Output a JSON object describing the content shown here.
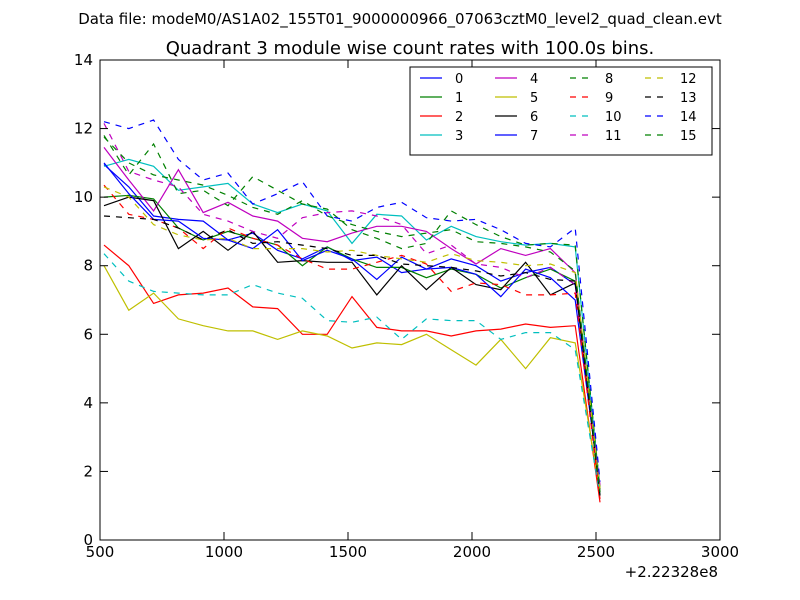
{
  "header": {
    "data_file": "Data file: modeM0/AS1A02_155T01_9000000966_07063cztM0_level2_quad_clean.evt"
  },
  "chart_data": {
    "type": "line",
    "title": "Quadrant 3 module wise count rates with 100.0s bins.",
    "xlabel": "",
    "ylabel": "",
    "x_offset_label": "+2.22328e8",
    "xlim": [
      500,
      3000
    ],
    "ylim": [
      0,
      14
    ],
    "xticks": [
      500,
      1000,
      1500,
      2000,
      2500,
      3000
    ],
    "yticks": [
      0,
      2,
      4,
      6,
      8,
      10,
      12,
      14
    ],
    "xtick_labels": [
      "500",
      "1000",
      "1500",
      "2000",
      "2500",
      "3000"
    ],
    "ytick_labels": [
      "0",
      "2",
      "4",
      "6",
      "8",
      "10",
      "12",
      "14"
    ],
    "grid": false,
    "legend_position": "top-right",
    "legend_columns": 4,
    "x": [
      516,
      616,
      716,
      816,
      916,
      1016,
      1116,
      1216,
      1316,
      1416,
      1516,
      1616,
      1716,
      1816,
      1916,
      2016,
      2116,
      2216,
      2316,
      2416,
      2516
    ],
    "series": [
      {
        "name": "0",
        "color": "#0000ff",
        "dash": "solid",
        "values": [
          10.95,
          10.3,
          9.45,
          9.35,
          9.3,
          8.75,
          8.95,
          8.45,
          8.2,
          8.55,
          8.15,
          8.25,
          7.8,
          7.9,
          8.2,
          8.0,
          7.55,
          7.8,
          7.95,
          7.45,
          1.4
        ]
      },
      {
        "name": "1",
        "color": "#008000",
        "dash": "solid",
        "values": [
          10.0,
          10.05,
          9.95,
          9.1,
          8.75,
          9.0,
          8.8,
          8.6,
          8.0,
          8.55,
          8.2,
          7.95,
          7.95,
          7.65,
          7.9,
          7.75,
          7.35,
          7.65,
          7.9,
          7.55,
          1.3
        ]
      },
      {
        "name": "2",
        "color": "#ff0000",
        "dash": "solid",
        "values": [
          8.6,
          8.0,
          6.9,
          7.15,
          7.2,
          7.35,
          6.8,
          6.75,
          6.0,
          6.0,
          7.1,
          6.2,
          6.1,
          6.1,
          5.95,
          6.1,
          6.15,
          6.3,
          6.2,
          6.25,
          1.1
        ]
      },
      {
        "name": "3",
        "color": "#00bfbf",
        "dash": "solid",
        "values": [
          10.9,
          11.1,
          10.9,
          10.2,
          10.3,
          10.4,
          9.8,
          9.55,
          9.8,
          9.6,
          8.65,
          9.5,
          9.45,
          8.75,
          9.15,
          8.85,
          8.7,
          8.6,
          8.65,
          8.55,
          1.5
        ]
      },
      {
        "name": "4",
        "color": "#bf00bf",
        "dash": "solid",
        "values": [
          11.45,
          10.5,
          9.6,
          10.8,
          9.55,
          9.85,
          9.45,
          9.3,
          8.8,
          8.7,
          8.95,
          9.15,
          9.15,
          9.0,
          8.5,
          8.05,
          8.5,
          8.3,
          8.5,
          7.8,
          1.5
        ]
      },
      {
        "name": "5",
        "color": "#bfbf00",
        "dash": "solid",
        "values": [
          8.0,
          6.7,
          7.2,
          6.45,
          6.25,
          6.1,
          6.1,
          5.85,
          6.1,
          5.95,
          5.6,
          5.75,
          5.7,
          6.0,
          5.55,
          5.1,
          5.85,
          5.0,
          5.9,
          5.75,
          1.4
        ]
      },
      {
        "name": "6",
        "color": "#000000",
        "dash": "solid",
        "values": [
          9.75,
          10.0,
          9.9,
          8.5,
          9.0,
          8.45,
          9.0,
          8.1,
          8.15,
          8.1,
          8.1,
          7.15,
          8.0,
          7.3,
          7.95,
          7.45,
          7.3,
          8.1,
          7.15,
          7.5,
          1.5
        ]
      },
      {
        "name": "7",
        "color": "#0000ff",
        "dash": "solid",
        "values": [
          11.0,
          10.1,
          9.35,
          9.3,
          8.8,
          8.75,
          8.5,
          9.05,
          8.15,
          8.45,
          8.2,
          7.6,
          8.25,
          7.9,
          7.95,
          7.75,
          7.1,
          7.9,
          7.65,
          7.0,
          1.5
        ]
      },
      {
        "name": "8",
        "color": "#008000",
        "dash": "dash",
        "values": [
          11.8,
          10.65,
          11.55,
          10.1,
          10.2,
          9.75,
          10.6,
          10.2,
          9.8,
          9.65,
          9.05,
          8.8,
          8.5,
          8.65,
          9.6,
          9.2,
          8.85,
          8.6,
          8.65,
          8.6,
          1.5
        ]
      },
      {
        "name": "9",
        "color": "#ff0000",
        "dash": "dash",
        "values": [
          10.35,
          9.5,
          9.35,
          9.1,
          8.5,
          9.1,
          8.8,
          8.6,
          8.2,
          7.9,
          7.9,
          8.1,
          8.3,
          8.05,
          7.25,
          7.5,
          7.45,
          7.15,
          7.15,
          7.2,
          1.2
        ]
      },
      {
        "name": "10",
        "color": "#00bfbf",
        "dash": "dash",
        "values": [
          8.35,
          7.55,
          7.25,
          7.2,
          7.15,
          7.15,
          7.45,
          7.2,
          7.05,
          6.4,
          6.35,
          6.5,
          5.85,
          6.45,
          6.4,
          6.4,
          5.85,
          6.05,
          6.05,
          5.55,
          1.3
        ]
      },
      {
        "name": "11",
        "color": "#bf00bf",
        "dash": "dash",
        "values": [
          12.15,
          10.75,
          10.5,
          10.3,
          9.5,
          9.3,
          9.0,
          8.8,
          9.4,
          9.55,
          9.6,
          9.45,
          9.2,
          8.35,
          8.6,
          8.05,
          7.95,
          7.65,
          7.95,
          7.45,
          1.6
        ]
      },
      {
        "name": "12",
        "color": "#bfbf00",
        "dash": "dash",
        "values": [
          10.3,
          10.0,
          9.2,
          8.9,
          8.75,
          8.8,
          8.5,
          8.5,
          8.5,
          8.4,
          8.45,
          8.3,
          8.2,
          8.1,
          8.35,
          8.15,
          8.1,
          8.0,
          8.05,
          7.8,
          1.5
        ]
      },
      {
        "name": "13",
        "color": "#000000",
        "dash": "dash",
        "values": [
          9.45,
          9.4,
          9.35,
          9.1,
          8.75,
          9.05,
          8.65,
          8.7,
          8.6,
          8.5,
          8.3,
          8.3,
          8.05,
          8.0,
          7.95,
          7.85,
          7.7,
          7.8,
          7.6,
          7.55,
          1.3
        ]
      },
      {
        "name": "14",
        "color": "#0000ff",
        "dash": "dash",
        "values": [
          12.2,
          12.0,
          12.25,
          11.1,
          10.5,
          10.7,
          9.8,
          10.1,
          10.45,
          9.45,
          9.3,
          9.7,
          9.85,
          9.4,
          9.3,
          9.35,
          9.05,
          8.65,
          8.55,
          9.1,
          1.7
        ]
      },
      {
        "name": "15",
        "color": "#008000",
        "dash": "dash",
        "values": [
          11.75,
          11.0,
          10.65,
          10.5,
          10.35,
          10.05,
          9.7,
          9.5,
          9.9,
          9.45,
          9.2,
          9.0,
          8.85,
          8.95,
          9.05,
          8.7,
          8.65,
          8.55,
          8.4,
          7.85,
          1.4
        ]
      }
    ]
  }
}
